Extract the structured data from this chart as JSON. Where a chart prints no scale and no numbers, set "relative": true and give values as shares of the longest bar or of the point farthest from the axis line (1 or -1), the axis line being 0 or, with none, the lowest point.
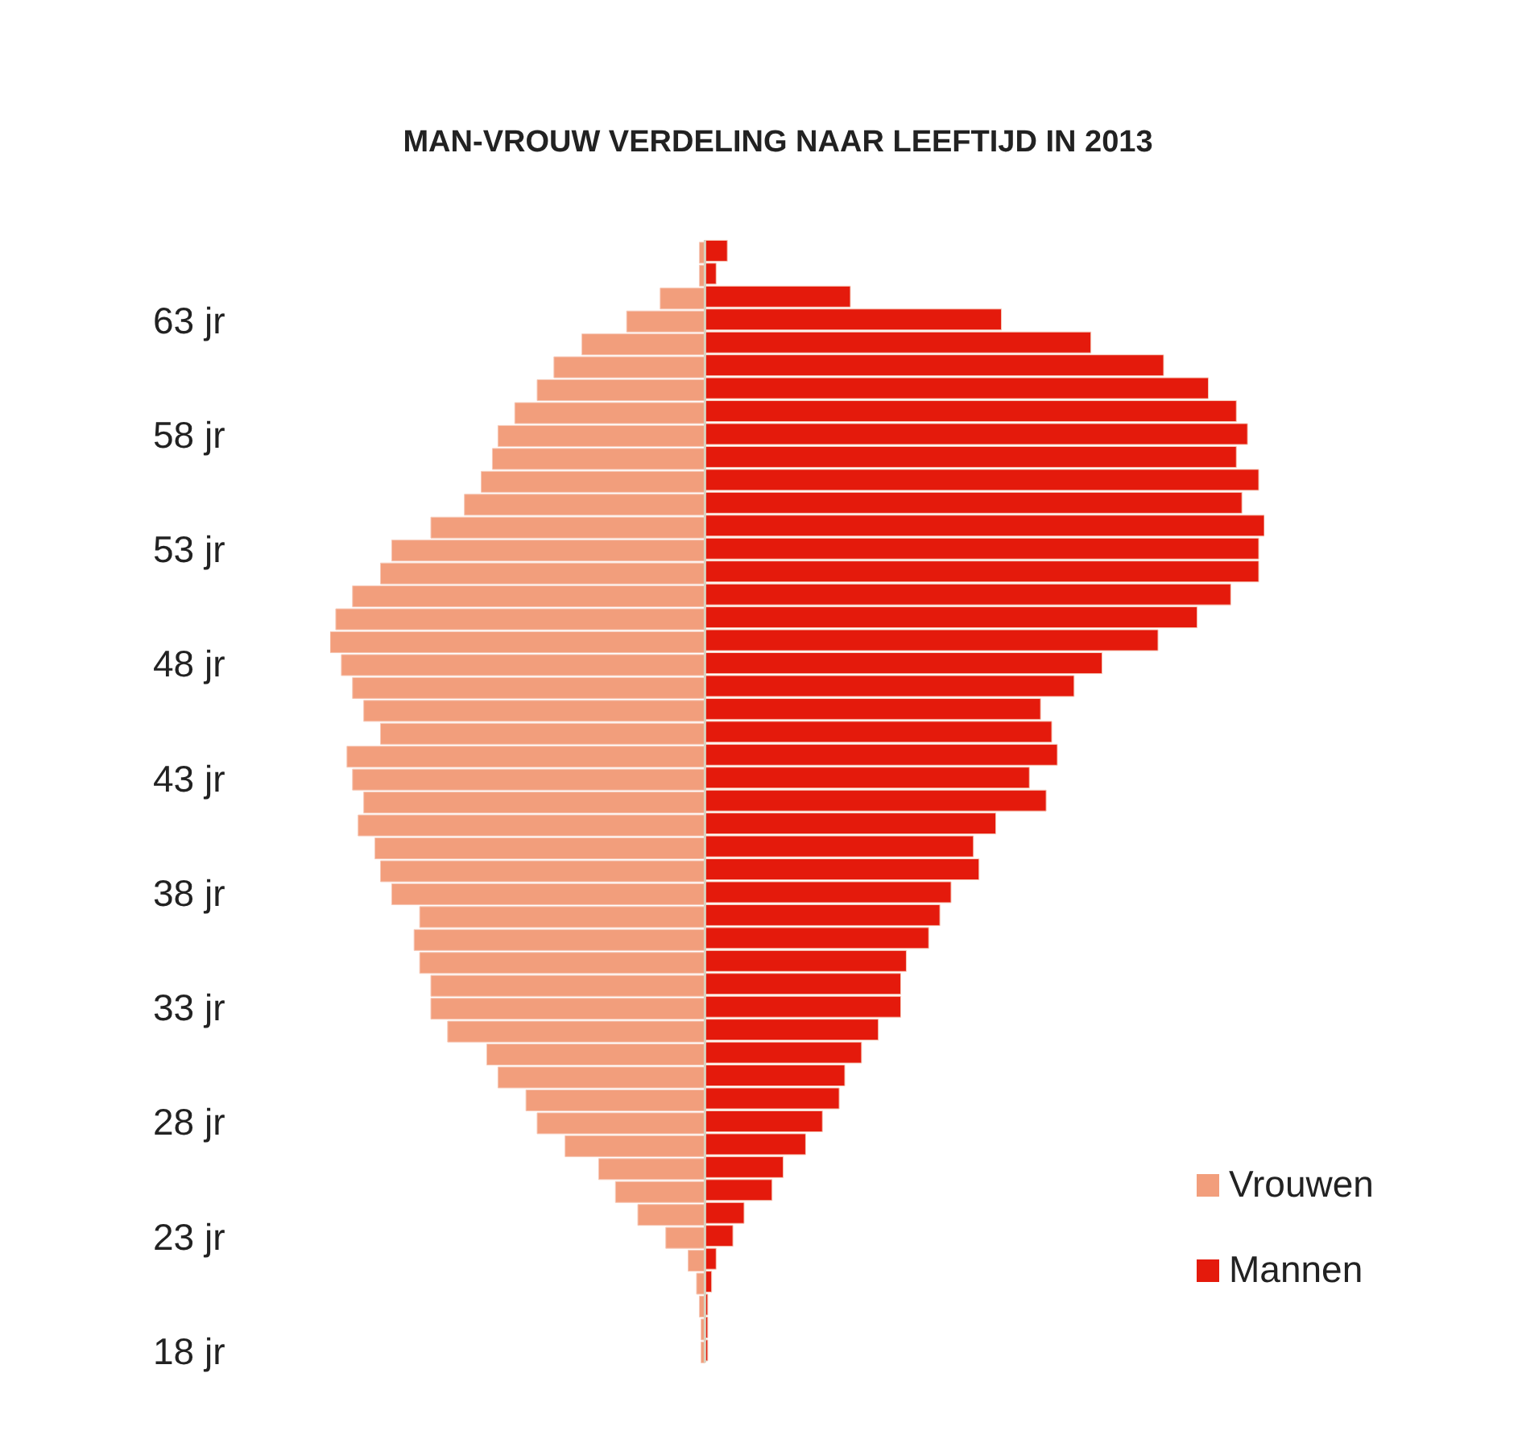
{
  "chart_data": {
    "type": "bar",
    "orientation": "horizontal",
    "relative": true,
    "title": "MAN-VROUW VERDELING NAAR LEEFTIJD IN 2013",
    "legend": "bottom right",
    "categories": [
      null,
      null,
      null,
      "63 jr",
      null,
      null,
      null,
      null,
      "58 jr",
      null,
      null,
      null,
      null,
      "53 jr",
      null,
      null,
      null,
      null,
      "48 jr",
      null,
      null,
      null,
      null,
      "43 jr",
      null,
      null,
      null,
      null,
      "38 jr",
      null,
      null,
      null,
      null,
      "33 jr",
      null,
      null,
      null,
      null,
      "28 jr",
      null,
      null,
      null,
      null,
      "23 jr",
      null,
      null,
      null,
      null,
      "18 jr"
    ],
    "series": [
      {
        "name": "Vrouwen",
        "color": "#f29e7c",
        "values": [
          -0.01,
          -0.01,
          -0.08,
          -0.14,
          -0.22,
          -0.27,
          -0.3,
          -0.34,
          -0.37,
          -0.38,
          -0.4,
          -0.43,
          -0.49,
          -0.56,
          -0.58,
          -0.63,
          -0.66,
          -0.67,
          -0.65,
          -0.63,
          -0.61,
          -0.58,
          -0.64,
          -0.63,
          -0.61,
          -0.62,
          -0.59,
          -0.58,
          -0.56,
          -0.51,
          -0.52,
          -0.51,
          -0.49,
          -0.49,
          -0.46,
          -0.39,
          -0.37,
          -0.32,
          -0.3,
          -0.25,
          -0.19,
          -0.16,
          -0.12,
          -0.07,
          -0.03,
          -0.015,
          -0.01,
          -0.007,
          -0.007
        ]
      },
      {
        "name": "Mannen",
        "color": "#e41a0c",
        "values": [
          0.04,
          0.02,
          0.26,
          0.53,
          0.69,
          0.82,
          0.9,
          0.95,
          0.97,
          0.95,
          0.99,
          0.96,
          1,
          0.99,
          0.99,
          0.94,
          0.88,
          0.81,
          0.71,
          0.66,
          0.6,
          0.62,
          0.63,
          0.58,
          0.61,
          0.52,
          0.48,
          0.49,
          0.44,
          0.42,
          0.4,
          0.36,
          0.35,
          0.35,
          0.31,
          0.28,
          0.25,
          0.24,
          0.21,
          0.18,
          0.14,
          0.12,
          0.07,
          0.05,
          0.02,
          0.012,
          0.005,
          0.005,
          0.005
        ]
      }
    ]
  }
}
